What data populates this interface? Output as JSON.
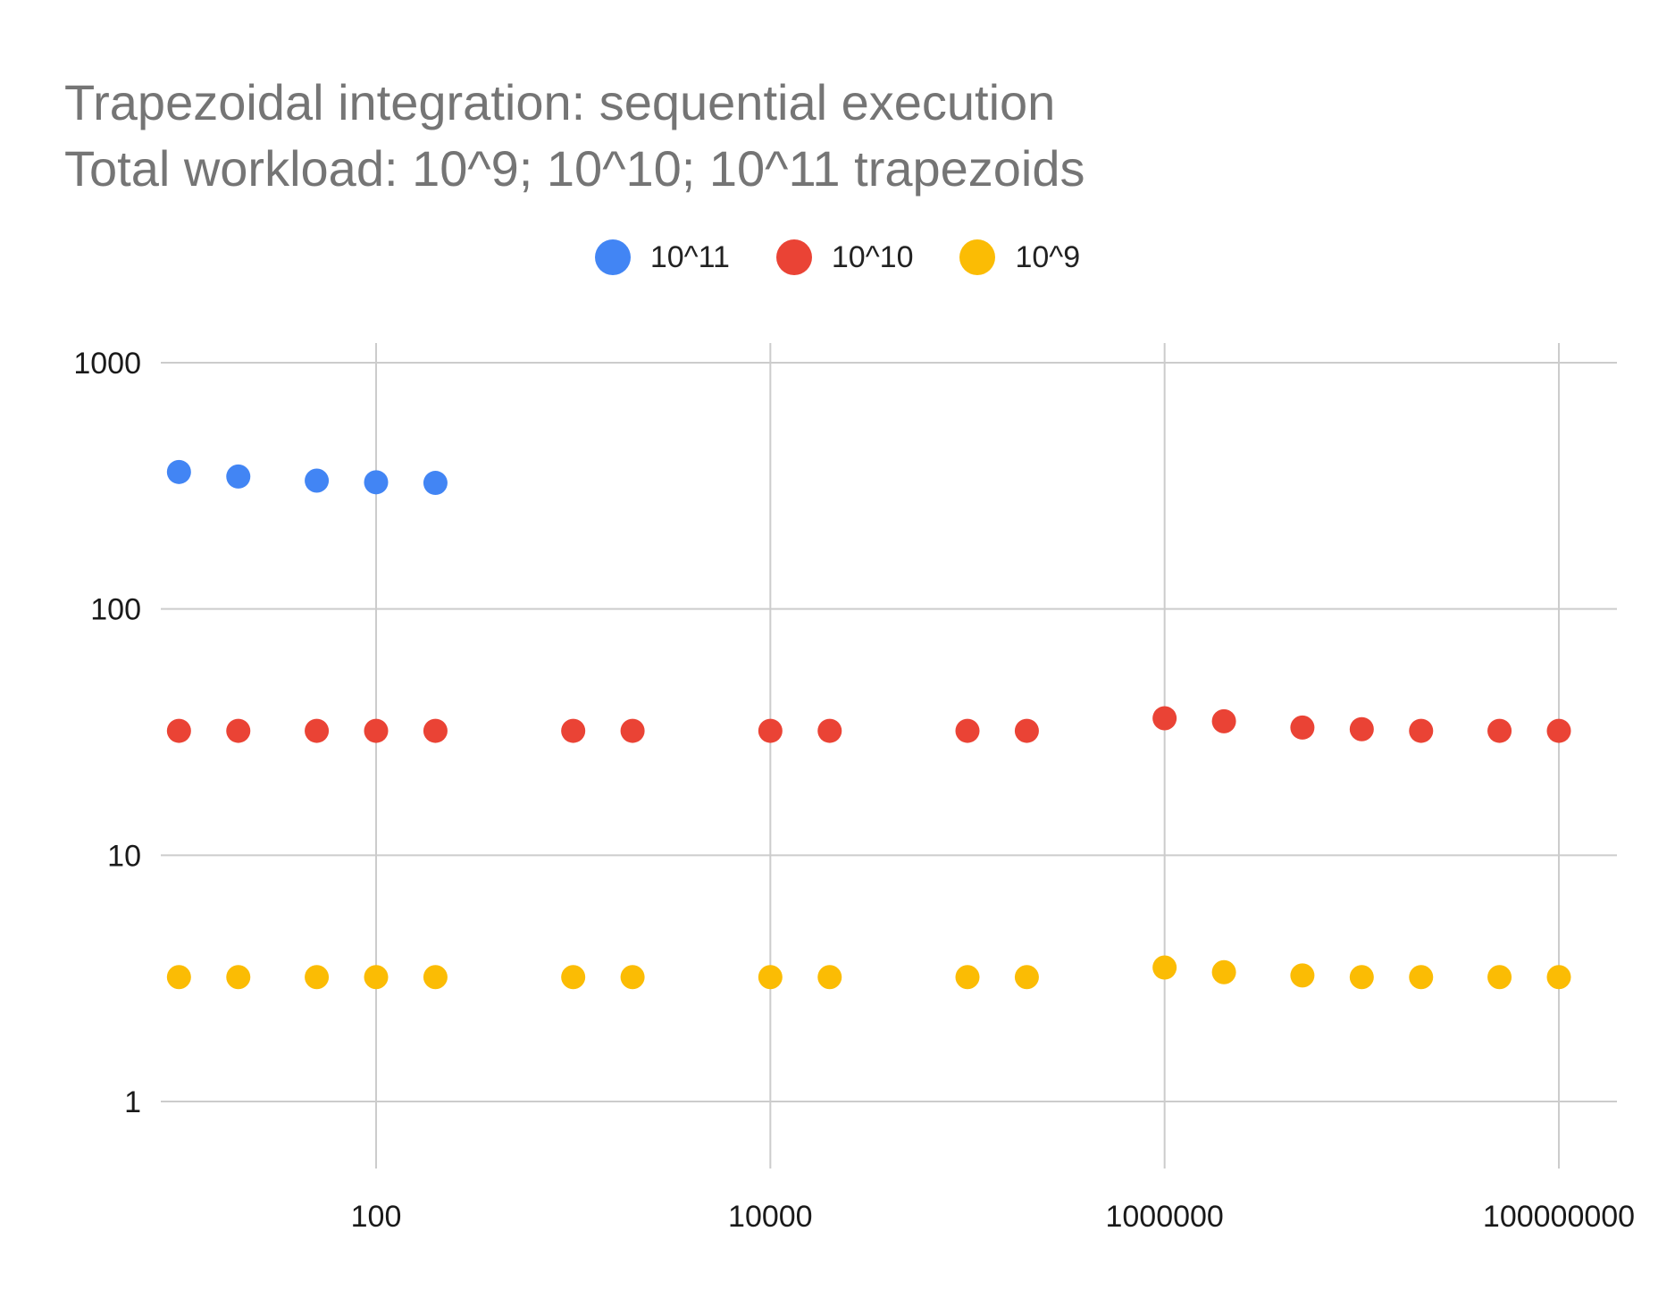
{
  "chart_data": {
    "type": "scatter",
    "title": "Trapezoidal integration: sequential execution",
    "subtitle": "Total workload: 10^9; 10^10; 10^11 trapezoids",
    "xlabel": "",
    "ylabel": "",
    "x_scale": "log",
    "y_scale": "log",
    "xlim": [
      8,
      220000000
    ],
    "ylim": [
      0.5,
      1000
    ],
    "x_ticks": [
      {
        "value": 100,
        "label": "100"
      },
      {
        "value": 10000,
        "label": "10000"
      },
      {
        "value": 1000000,
        "label": "1000000"
      },
      {
        "value": 100000000,
        "label": "100000000"
      }
    ],
    "y_ticks": [
      {
        "value": 1,
        "label": "1"
      },
      {
        "value": 10,
        "label": "10"
      },
      {
        "value": 100,
        "label": "100"
      },
      {
        "value": 1000,
        "label": "1000"
      }
    ],
    "grid": true,
    "legend_position": "top",
    "series": [
      {
        "name": "10^11",
        "color": "#4285F4",
        "points": [
          [
            10,
            360
          ],
          [
            20,
            345
          ],
          [
            50,
            332
          ],
          [
            100,
            327
          ],
          [
            200,
            325
          ]
        ]
      },
      {
        "name": "10^10",
        "color": "#EA4335",
        "points": [
          [
            10,
            32
          ],
          [
            20,
            32
          ],
          [
            50,
            32
          ],
          [
            100,
            32
          ],
          [
            200,
            32
          ],
          [
            1000,
            32
          ],
          [
            2000,
            32
          ],
          [
            10000,
            32
          ],
          [
            20000,
            32
          ],
          [
            100000,
            32
          ],
          [
            200000,
            32
          ],
          [
            1000000,
            36
          ],
          [
            2000000,
            35
          ],
          [
            5000000,
            33
          ],
          [
            10000000,
            32.5
          ],
          [
            20000000,
            32
          ],
          [
            50000000,
            32
          ],
          [
            100000000,
            32
          ]
        ]
      },
      {
        "name": "10^9",
        "color": "#FBBC04",
        "points": [
          [
            10,
            3.2
          ],
          [
            20,
            3.2
          ],
          [
            50,
            3.2
          ],
          [
            100,
            3.2
          ],
          [
            200,
            3.2
          ],
          [
            1000,
            3.2
          ],
          [
            2000,
            3.2
          ],
          [
            10000,
            3.2
          ],
          [
            20000,
            3.2
          ],
          [
            100000,
            3.2
          ],
          [
            200000,
            3.2
          ],
          [
            1000000,
            3.5
          ],
          [
            2000000,
            3.35
          ],
          [
            5000000,
            3.25
          ],
          [
            10000000,
            3.2
          ],
          [
            20000000,
            3.2
          ],
          [
            50000000,
            3.2
          ],
          [
            100000000,
            3.2
          ]
        ]
      }
    ]
  }
}
